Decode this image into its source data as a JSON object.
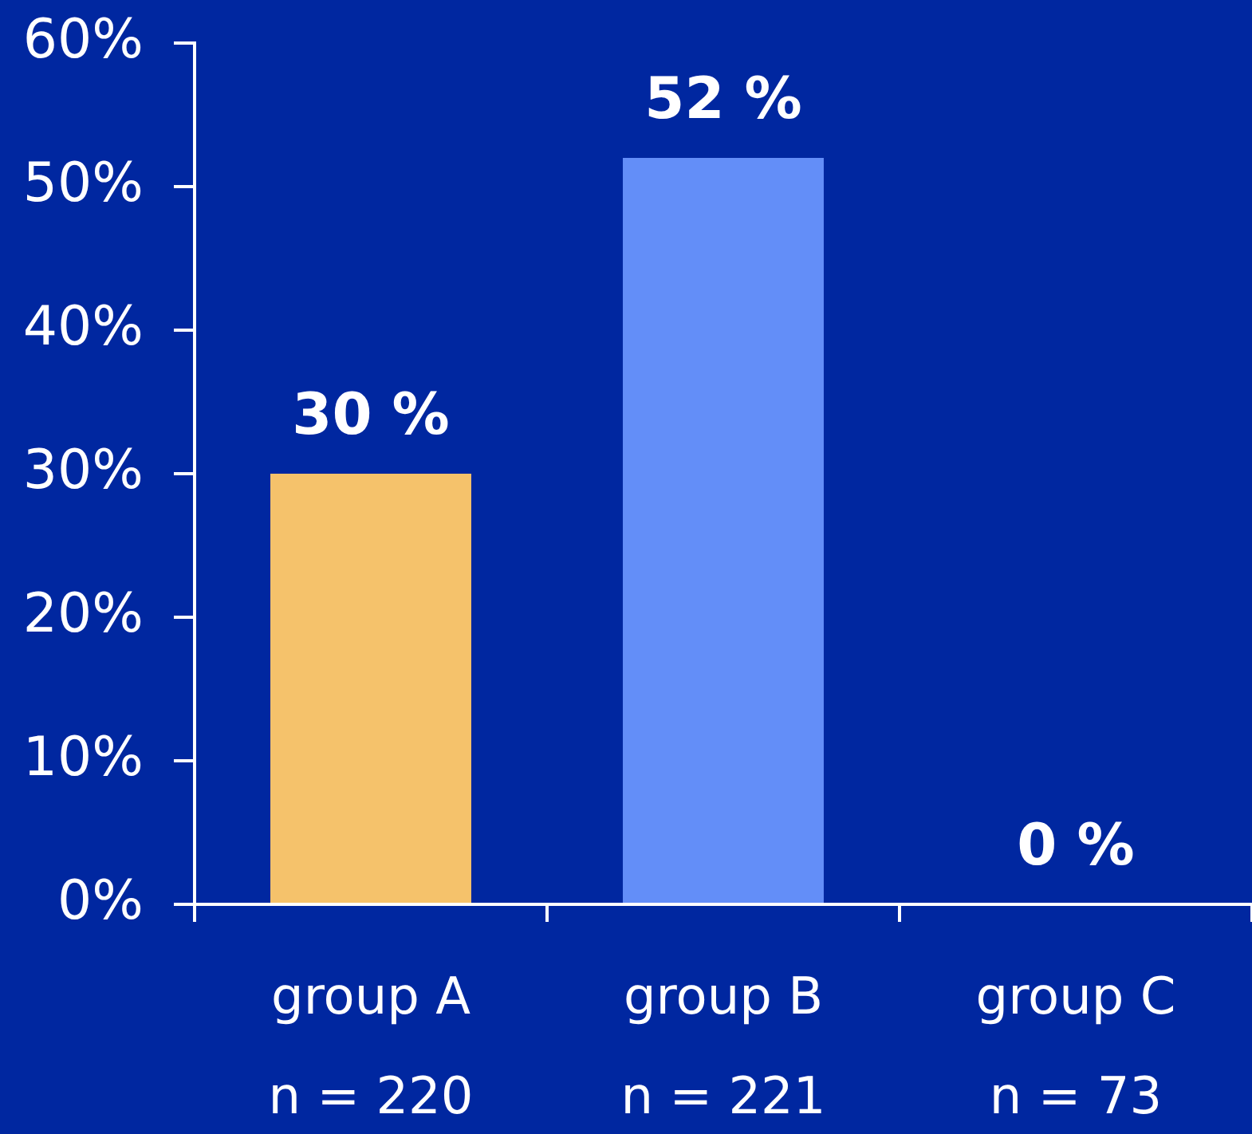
{
  "chart_data": {
    "type": "bar",
    "categories": [
      "group A\nn = 220",
      "group B\nn = 221",
      "group C\nn = 73"
    ],
    "values": [
      30,
      52,
      0
    ],
    "colors": [
      "#f5c26b",
      "#638ef8",
      "#638ef8"
    ],
    "ylim": [
      0,
      60
    ],
    "yticks": [
      {
        "value": 0,
        "label": "0%"
      },
      {
        "value": 10,
        "label": "10%"
      },
      {
        "value": 20,
        "label": "20%"
      },
      {
        "value": 30,
        "label": "30%"
      },
      {
        "value": 40,
        "label": "40%"
      },
      {
        "value": 50,
        "label": "50%"
      },
      {
        "value": 60,
        "label": "60%"
      }
    ],
    "value_labels": [
      "30 %",
      "52 %",
      "0 %"
    ]
  }
}
